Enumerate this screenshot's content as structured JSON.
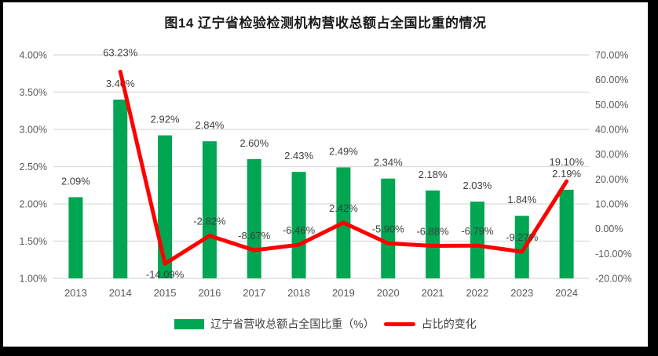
{
  "title": "图14 辽宁省检验检测机构营收总额占全国比重的情况",
  "legend": [
    {
      "label": "辽宁省营收总额占全国比重（%）",
      "swatch": "bar",
      "color": "#00A651"
    },
    {
      "label": "占比的变化",
      "swatch": "line",
      "color": "#FF0000"
    }
  ],
  "colors": {
    "frame": "#000000",
    "panel": "#ffffff",
    "grid": "#D9D9D9",
    "axis_text": "#595959",
    "data_label_text": "#3f3f3f",
    "bar": "#00A651",
    "line": "#FF0000"
  },
  "chart_data": {
    "type": "bar",
    "subtype": "bar-line-combo",
    "title": "图14 辽宁省检验检测机构营收总额占全国比重的情况",
    "categories": [
      "2013",
      "2014",
      "2015",
      "2016",
      "2017",
      "2018",
      "2019",
      "2020",
      "2021",
      "2022",
      "2023",
      "2024"
    ],
    "series": [
      {
        "name": "辽宁省营收总额占全国比重（%）",
        "type": "bar",
        "axis": "left",
        "color": "#00A651",
        "values": [
          2.09,
          3.4,
          2.92,
          2.84,
          2.6,
          2.43,
          2.49,
          2.34,
          2.18,
          2.03,
          1.84,
          2.19
        ],
        "labels": [
          "2.09%",
          "3.40%",
          "2.92%",
          "2.84%",
          "2.60%",
          "2.43%",
          "2.49%",
          "2.34%",
          "2.18%",
          "2.03%",
          "1.84%",
          "2.19%"
        ]
      },
      {
        "name": "占比的变化",
        "type": "line",
        "axis": "right",
        "color": "#FF0000",
        "values": [
          null,
          63.23,
          -14.09,
          -2.82,
          -8.67,
          -6.46,
          2.42,
          -5.9,
          -6.88,
          -6.79,
          -9.27,
          19.1
        ],
        "labels": [
          null,
          "63.23%",
          "-14.09%",
          "-2.82%",
          "-8.67%",
          "-6.46%",
          "2.42%",
          "-5.90%",
          "-6.88%",
          "-6.79%",
          "-9.27%",
          "19.10%"
        ]
      }
    ],
    "left_axis": {
      "min": 1.0,
      "max": 4.0,
      "step": 0.5,
      "ticks": [
        "4.00%",
        "3.50%",
        "3.00%",
        "2.50%",
        "2.00%",
        "1.50%",
        "1.00%"
      ]
    },
    "right_axis": {
      "min": -20,
      "max": 70,
      "step": 10,
      "ticks": [
        "70.00%",
        "60.00%",
        "50.00%",
        "40.00%",
        "30.00%",
        "20.00%",
        "10.00%",
        "0.00%",
        "-10.00%",
        "-20.00%"
      ]
    },
    "layout_hints": {
      "grid": true,
      "legend_position": "bottom",
      "line_label_dy": [
        null,
        -20,
        18,
        -14,
        -14,
        -14,
        -14,
        -14,
        -14,
        -14,
        -14,
        -20
      ]
    }
  }
}
